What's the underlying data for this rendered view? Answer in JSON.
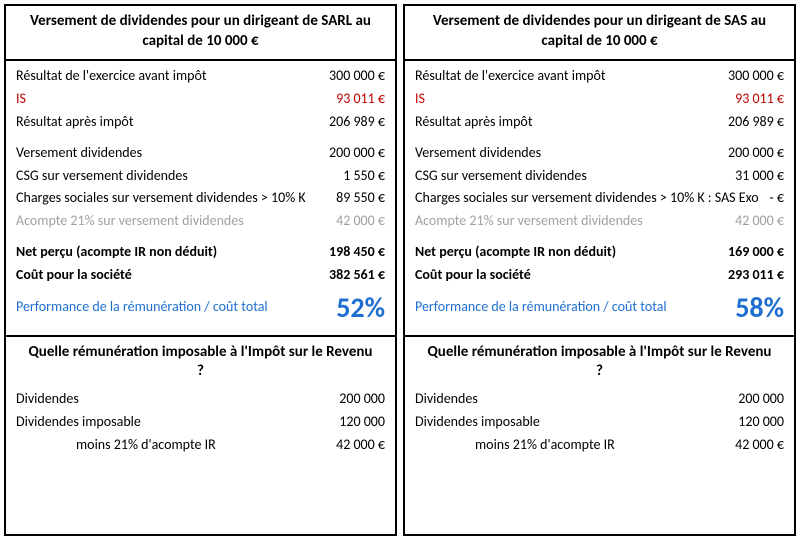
{
  "colors": {
    "border": "#000000",
    "text": "#000000",
    "red": "#c00000",
    "grey": "#a0a0a0",
    "blue": "#1f6fd1",
    "background": "#ffffff"
  },
  "left": {
    "title": "Versement de dividendes pour un dirigeant de SARL au capital de 10 000 €",
    "rows1": [
      {
        "label": "Résultat de l'exercice avant impôt",
        "value": "300 000 €"
      },
      {
        "label": "IS",
        "value": "93 011 €",
        "cls": "red"
      },
      {
        "label": "Résultat après impôt",
        "value": "206 989 €"
      }
    ],
    "rows2": [
      {
        "label": "Versement dividendes",
        "value": "200 000 €"
      },
      {
        "label": "CSG sur versement dividendes",
        "value": "1 550 €"
      },
      {
        "label": "Charges sociales sur versement dividendes > 10% K",
        "value": "89 550 €"
      },
      {
        "label": "Acompte 21% sur versement dividendes",
        "value": "42 000 €",
        "cls": "grey"
      }
    ],
    "rows3": [
      {
        "label": "Net perçu (acompte IR non déduit)",
        "value": "198 450 €",
        "cls": "bold"
      },
      {
        "label": "Coût pour la société",
        "value": "382 561 €",
        "cls": "bold"
      }
    ],
    "perf_label": "Performance de la rémunération / coût total",
    "perf_value": "52%",
    "sub_title": "Quelle rémunération imposable à l'Impôt sur le Revenu ?",
    "rows4": [
      {
        "label": "Dividendes",
        "value": "200 000"
      },
      {
        "label": "Dividendes imposable",
        "value": "120 000"
      },
      {
        "label": "moins 21% d'acompte IR",
        "value": "42 000 €",
        "indent": true
      }
    ]
  },
  "right": {
    "title": "Versement de dividendes pour un dirigeant de SAS au capital de 10 000 €",
    "rows1": [
      {
        "label": "Résultat de l'exercice avant impôt",
        "value": "300 000 €"
      },
      {
        "label": "IS",
        "value": "93 011 €",
        "cls": "red"
      },
      {
        "label": "Résultat après impôt",
        "value": "206 989 €"
      }
    ],
    "rows2": [
      {
        "label": "Versement dividendes",
        "value": "200 000 €"
      },
      {
        "label": "CSG sur versement dividendes",
        "value": "31 000 €"
      },
      {
        "label": "Charges sociales sur versement dividendes > 10% K : SAS Exo",
        "value": "- €"
      },
      {
        "label": "Acompte 21% sur versement dividendes",
        "value": "42 000 €",
        "cls": "grey"
      }
    ],
    "rows3": [
      {
        "label": "Net perçu (acompte IR non déduit)",
        "value": "169 000 €",
        "cls": "bold"
      },
      {
        "label": "Coût pour la société",
        "value": "293 011 €",
        "cls": "bold"
      }
    ],
    "perf_label": "Performance de la rémunération / coût total",
    "perf_value": "58%",
    "sub_title": "Quelle rémunération imposable à l'Impôt sur le Revenu ?",
    "rows4": [
      {
        "label": "Dividendes",
        "value": "200 000"
      },
      {
        "label": "Dividendes imposable",
        "value": "120 000"
      },
      {
        "label": "moins 21% d'acompte IR",
        "value": "42 000 €",
        "indent": true
      }
    ]
  }
}
